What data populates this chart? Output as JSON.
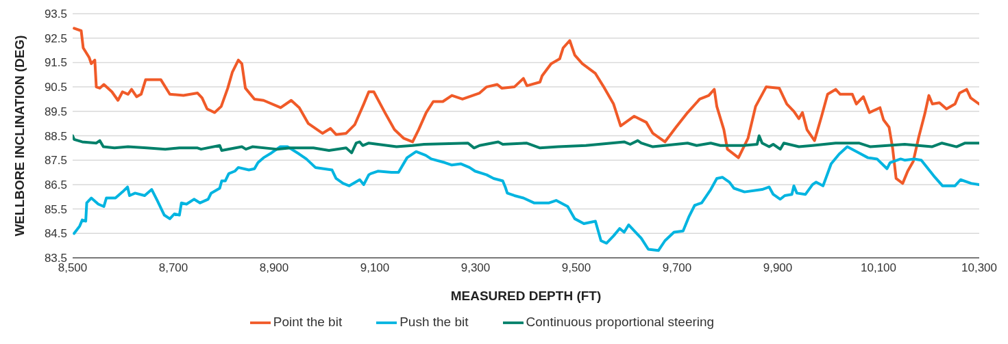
{
  "chart_data": {
    "type": "line",
    "xlabel": "MEASURED DEPTH (FT)",
    "ylabel": "WELLBORE INCLINATION (DEG)",
    "xlim": [
      8500,
      10300
    ],
    "xticks": [
      {
        "value": 8500,
        "label": "8,500"
      },
      {
        "value": 8700,
        "label": "8,700"
      },
      {
        "value": 8900,
        "label": "8,900"
      },
      {
        "value": 9100,
        "label": "9,100"
      },
      {
        "value": 9300,
        "label": "9,300"
      },
      {
        "value": 9500,
        "label": "9,500"
      },
      {
        "value": 9700,
        "label": "9,700"
      },
      {
        "value": 9900,
        "label": "9,900"
      },
      {
        "value": 10100,
        "label": "10,100"
      },
      {
        "value": 10300,
        "label": "10,300"
      }
    ],
    "ylim": [
      83.5,
      93.5
    ],
    "yticks": [
      83.5,
      84.5,
      85.5,
      86.5,
      87.5,
      88.5,
      89.5,
      90.5,
      91.5,
      92.5,
      93.5
    ],
    "grid": "y",
    "legend": "bottom",
    "marker": "none",
    "line_style": "solid",
    "series": [
      {
        "name": "Point the bit",
        "color": "#f05a28",
        "x": [
          8503,
          8517,
          8521,
          8533,
          8537,
          8544,
          8547,
          8554,
          8562,
          8578,
          8590,
          8599,
          8610,
          8617,
          8627,
          8636,
          8645,
          8675,
          8693,
          8720,
          8748,
          8757,
          8767,
          8782,
          8795,
          8808,
          8817,
          8829,
          8836,
          8843,
          8861,
          8879,
          8913,
          8934,
          8950,
          8968,
          8996,
          9012,
          9023,
          9043,
          9060,
          9078,
          9088,
          9098,
          9120,
          9139,
          9157,
          9175,
          9187,
          9202,
          9216,
          9235,
          9253,
          9274,
          9308,
          9322,
          9343,
          9352,
          9377,
          9395,
          9402,
          9428,
          9432,
          9450,
          9467,
          9474,
          9487,
          9497,
          9512,
          9538,
          9556,
          9574,
          9588,
          9615,
          9639,
          9652,
          9676,
          9698,
          9721,
          9745,
          9763,
          9774,
          9779,
          9793,
          9800,
          9822,
          9841,
          9856,
          9877,
          9903,
          9918,
          9932,
          9942,
          9949,
          9958,
          9973,
          9987,
          9999,
          10015,
          10024,
          10048,
          10056,
          10070,
          10082,
          10103,
          10110,
          10121,
          10128,
          10135,
          10148,
          10158,
          10169,
          10180,
          10192,
          10200,
          10207,
          10221,
          10235,
          10252,
          10261,
          10275,
          10283,
          10300
        ],
        "values": [
          92.9,
          92.8,
          92.1,
          91.7,
          91.45,
          91.6,
          90.5,
          90.45,
          90.6,
          90.3,
          89.95,
          90.3,
          90.2,
          90.4,
          90.1,
          90.2,
          90.8,
          90.8,
          90.2,
          90.15,
          90.25,
          90.05,
          89.6,
          89.45,
          89.7,
          90.45,
          91.1,
          91.6,
          91.45,
          90.45,
          90.0,
          89.95,
          89.65,
          89.95,
          89.65,
          89.0,
          88.6,
          88.8,
          88.55,
          88.6,
          88.95,
          89.8,
          90.3,
          90.3,
          89.45,
          88.75,
          88.4,
          88.25,
          88.75,
          89.45,
          89.9,
          89.9,
          90.15,
          90.0,
          90.25,
          90.5,
          90.6,
          90.45,
          90.5,
          90.85,
          90.55,
          90.7,
          90.95,
          91.45,
          91.65,
          92.1,
          92.4,
          91.8,
          91.45,
          91.05,
          90.45,
          89.8,
          88.9,
          89.3,
          89.05,
          88.6,
          88.25,
          88.85,
          89.45,
          90.0,
          90.15,
          90.4,
          89.7,
          88.75,
          87.95,
          87.6,
          88.4,
          89.7,
          90.5,
          90.45,
          89.8,
          89.5,
          89.2,
          89.45,
          88.75,
          88.3,
          89.3,
          90.2,
          90.4,
          90.2,
          90.2,
          89.8,
          90.1,
          89.45,
          89.65,
          89.15,
          88.85,
          88.0,
          86.75,
          86.55,
          87.05,
          87.45,
          88.45,
          89.4,
          90.15,
          89.8,
          89.85,
          89.6,
          89.8,
          90.25,
          90.4,
          90.05,
          89.8
        ]
      },
      {
        "name": "Push the bit",
        "color": "#00b4e0",
        "x": [
          8503,
          8514,
          8519,
          8526,
          8528,
          8537,
          8551,
          8562,
          8567,
          8585,
          8599,
          8609,
          8613,
          8624,
          8643,
          8657,
          8668,
          8682,
          8693,
          8702,
          8712,
          8716,
          8726,
          8741,
          8753,
          8769,
          8775,
          8792,
          8796,
          8803,
          8810,
          8822,
          8829,
          8850,
          8861,
          8868,
          8879,
          8895,
          8912,
          8927,
          8950,
          8964,
          8982,
          9015,
          9023,
          9037,
          9049,
          9070,
          9078,
          9088,
          9092,
          9106,
          9133,
          9147,
          9164,
          9182,
          9201,
          9212,
          9239,
          9253,
          9271,
          9288,
          9299,
          9322,
          9336,
          9354,
          9359,
          9363,
          9377,
          9395,
          9416,
          9446,
          9460,
          9483,
          9497,
          9515,
          9538,
          9549,
          9560,
          9574,
          9586,
          9595,
          9604,
          9629,
          9643,
          9663,
          9676,
          9694,
          9712,
          9724,
          9735,
          9749,
          9767,
          9779,
          9790,
          9804,
          9813,
          9834,
          9869,
          9883,
          9891,
          9905,
          9914,
          9928,
          9932,
          9938,
          9955,
          9969,
          9976,
          9990,
          10006,
          10022,
          10038,
          10061,
          10079,
          10097,
          10117,
          10123,
          10144,
          10152,
          10171,
          10185,
          10212,
          10227,
          10252,
          10263,
          10284,
          10300
        ],
        "values": [
          84.5,
          84.8,
          85.05,
          85.0,
          85.75,
          85.95,
          85.7,
          85.6,
          85.95,
          85.95,
          86.2,
          86.4,
          86.05,
          86.15,
          86.05,
          86.3,
          85.85,
          85.25,
          85.1,
          85.3,
          85.25,
          85.75,
          85.7,
          85.9,
          85.75,
          85.9,
          86.15,
          86.35,
          86.65,
          86.65,
          86.95,
          87.05,
          87.2,
          87.1,
          87.15,
          87.4,
          87.6,
          87.8,
          88.05,
          88.05,
          87.75,
          87.55,
          87.2,
          87.1,
          86.75,
          86.55,
          86.45,
          86.7,
          86.5,
          86.9,
          86.95,
          87.05,
          87.0,
          87.0,
          87.6,
          87.85,
          87.7,
          87.55,
          87.4,
          87.3,
          87.35,
          87.2,
          87.05,
          86.9,
          86.75,
          86.65,
          86.4,
          86.15,
          86.05,
          85.95,
          85.75,
          85.75,
          85.85,
          85.6,
          85.1,
          84.9,
          85.0,
          84.2,
          84.1,
          84.4,
          84.7,
          84.55,
          84.85,
          84.3,
          83.85,
          83.8,
          84.2,
          84.55,
          84.6,
          85.2,
          85.65,
          85.75,
          86.3,
          86.75,
          86.8,
          86.6,
          86.35,
          86.2,
          86.3,
          86.4,
          86.1,
          85.9,
          86.05,
          86.1,
          86.45,
          86.15,
          86.1,
          86.5,
          86.6,
          86.45,
          87.35,
          87.75,
          88.05,
          87.8,
          87.6,
          87.55,
          87.15,
          87.4,
          87.55,
          87.5,
          87.55,
          87.5,
          86.8,
          86.45,
          86.45,
          86.7,
          86.55,
          86.5
        ]
      },
      {
        "name": "Continuous proportional steering",
        "color": "#00806a",
        "x": [
          8500,
          8503,
          8519,
          8547,
          8554,
          8561,
          8583,
          8610,
          8647,
          8684,
          8712,
          8748,
          8755,
          8792,
          8796,
          8836,
          8844,
          8857,
          8905,
          8932,
          8978,
          9009,
          9043,
          9054,
          9063,
          9070,
          9076,
          9088,
          9143,
          9175,
          9198,
          9285,
          9297,
          9308,
          9345,
          9354,
          9401,
          9428,
          9464,
          9519,
          9595,
          9607,
          9622,
          9629,
          9652,
          9721,
          9739,
          9767,
          9786,
          9832,
          9859,
          9863,
          9869,
          9883,
          9891,
          9905,
          9912,
          9942,
          9969,
          10015,
          10061,
          10084,
          10152,
          10206,
          10226,
          10255,
          10272,
          10300
        ],
        "values": [
          88.5,
          88.35,
          88.25,
          88.2,
          88.3,
          88.05,
          88.0,
          88.05,
          88.0,
          87.95,
          88.0,
          88.0,
          87.95,
          88.1,
          87.9,
          88.05,
          87.95,
          88.05,
          87.95,
          88.0,
          88.0,
          87.9,
          88.0,
          87.8,
          88.2,
          88.25,
          88.1,
          88.2,
          88.05,
          88.1,
          88.15,
          88.2,
          88.0,
          88.1,
          88.25,
          88.15,
          88.2,
          88.0,
          88.05,
          88.1,
          88.25,
          88.15,
          88.3,
          88.2,
          88.05,
          88.2,
          88.1,
          88.2,
          88.1,
          88.1,
          88.15,
          88.5,
          88.2,
          88.05,
          88.15,
          87.95,
          88.2,
          88.05,
          88.1,
          88.2,
          88.2,
          88.05,
          88.15,
          88.05,
          88.2,
          88.05,
          88.2,
          88.2
        ]
      }
    ]
  }
}
